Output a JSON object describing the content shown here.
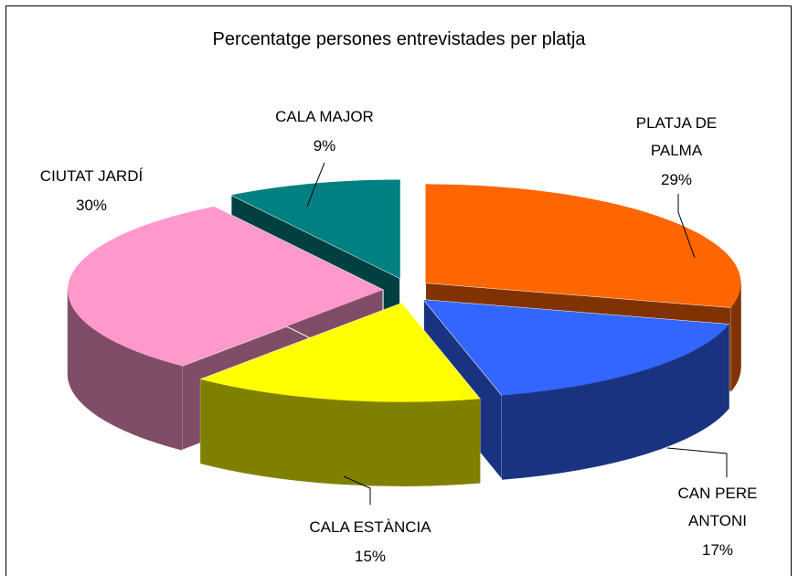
{
  "chart_data": {
    "type": "pie3d",
    "title": "Percentatge persones entrevistades per platja",
    "categories": [
      "PLATJA DE PALMA",
      "CAN PERE ANTONI",
      "CALA ESTÀNCIA",
      "CIUTAT JARDÍ",
      "CALA MAJOR"
    ],
    "values": [
      29,
      17,
      15,
      30,
      9
    ],
    "value_labels": [
      "29%",
      "17%",
      "15%",
      "30%",
      "9%"
    ],
    "colors": [
      "#ff6600",
      "#3366ff",
      "#ffff00",
      "#ff99cc",
      "#008080"
    ]
  }
}
